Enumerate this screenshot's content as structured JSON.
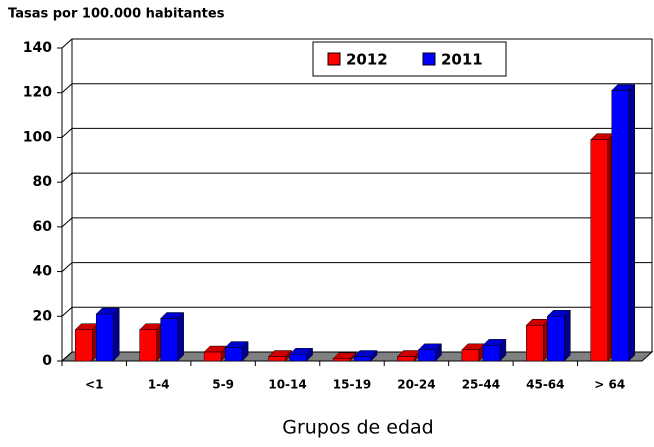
{
  "chart_data": {
    "type": "bar3d",
    "title": "Tasas por 100.000 habitantes",
    "x_label": "Grupos de edad",
    "categories": [
      "<1",
      "1-4",
      "5-9",
      "10-14",
      "15-19",
      "20-24",
      "25-44",
      "45-64",
      "> 64"
    ],
    "series": [
      {
        "name": "2012",
        "color": "#ff0000",
        "values": [
          14,
          14,
          4,
          2,
          1,
          2,
          5,
          16,
          99
        ]
      },
      {
        "name": "2011",
        "color": "#0000ff",
        "values": [
          21,
          19,
          6,
          3,
          2,
          5,
          7,
          20,
          121
        ]
      }
    ],
    "ylim": [
      0,
      140
    ],
    "yticks": [
      0,
      20,
      40,
      60,
      80,
      100,
      120,
      140
    ],
    "grid": true
  }
}
